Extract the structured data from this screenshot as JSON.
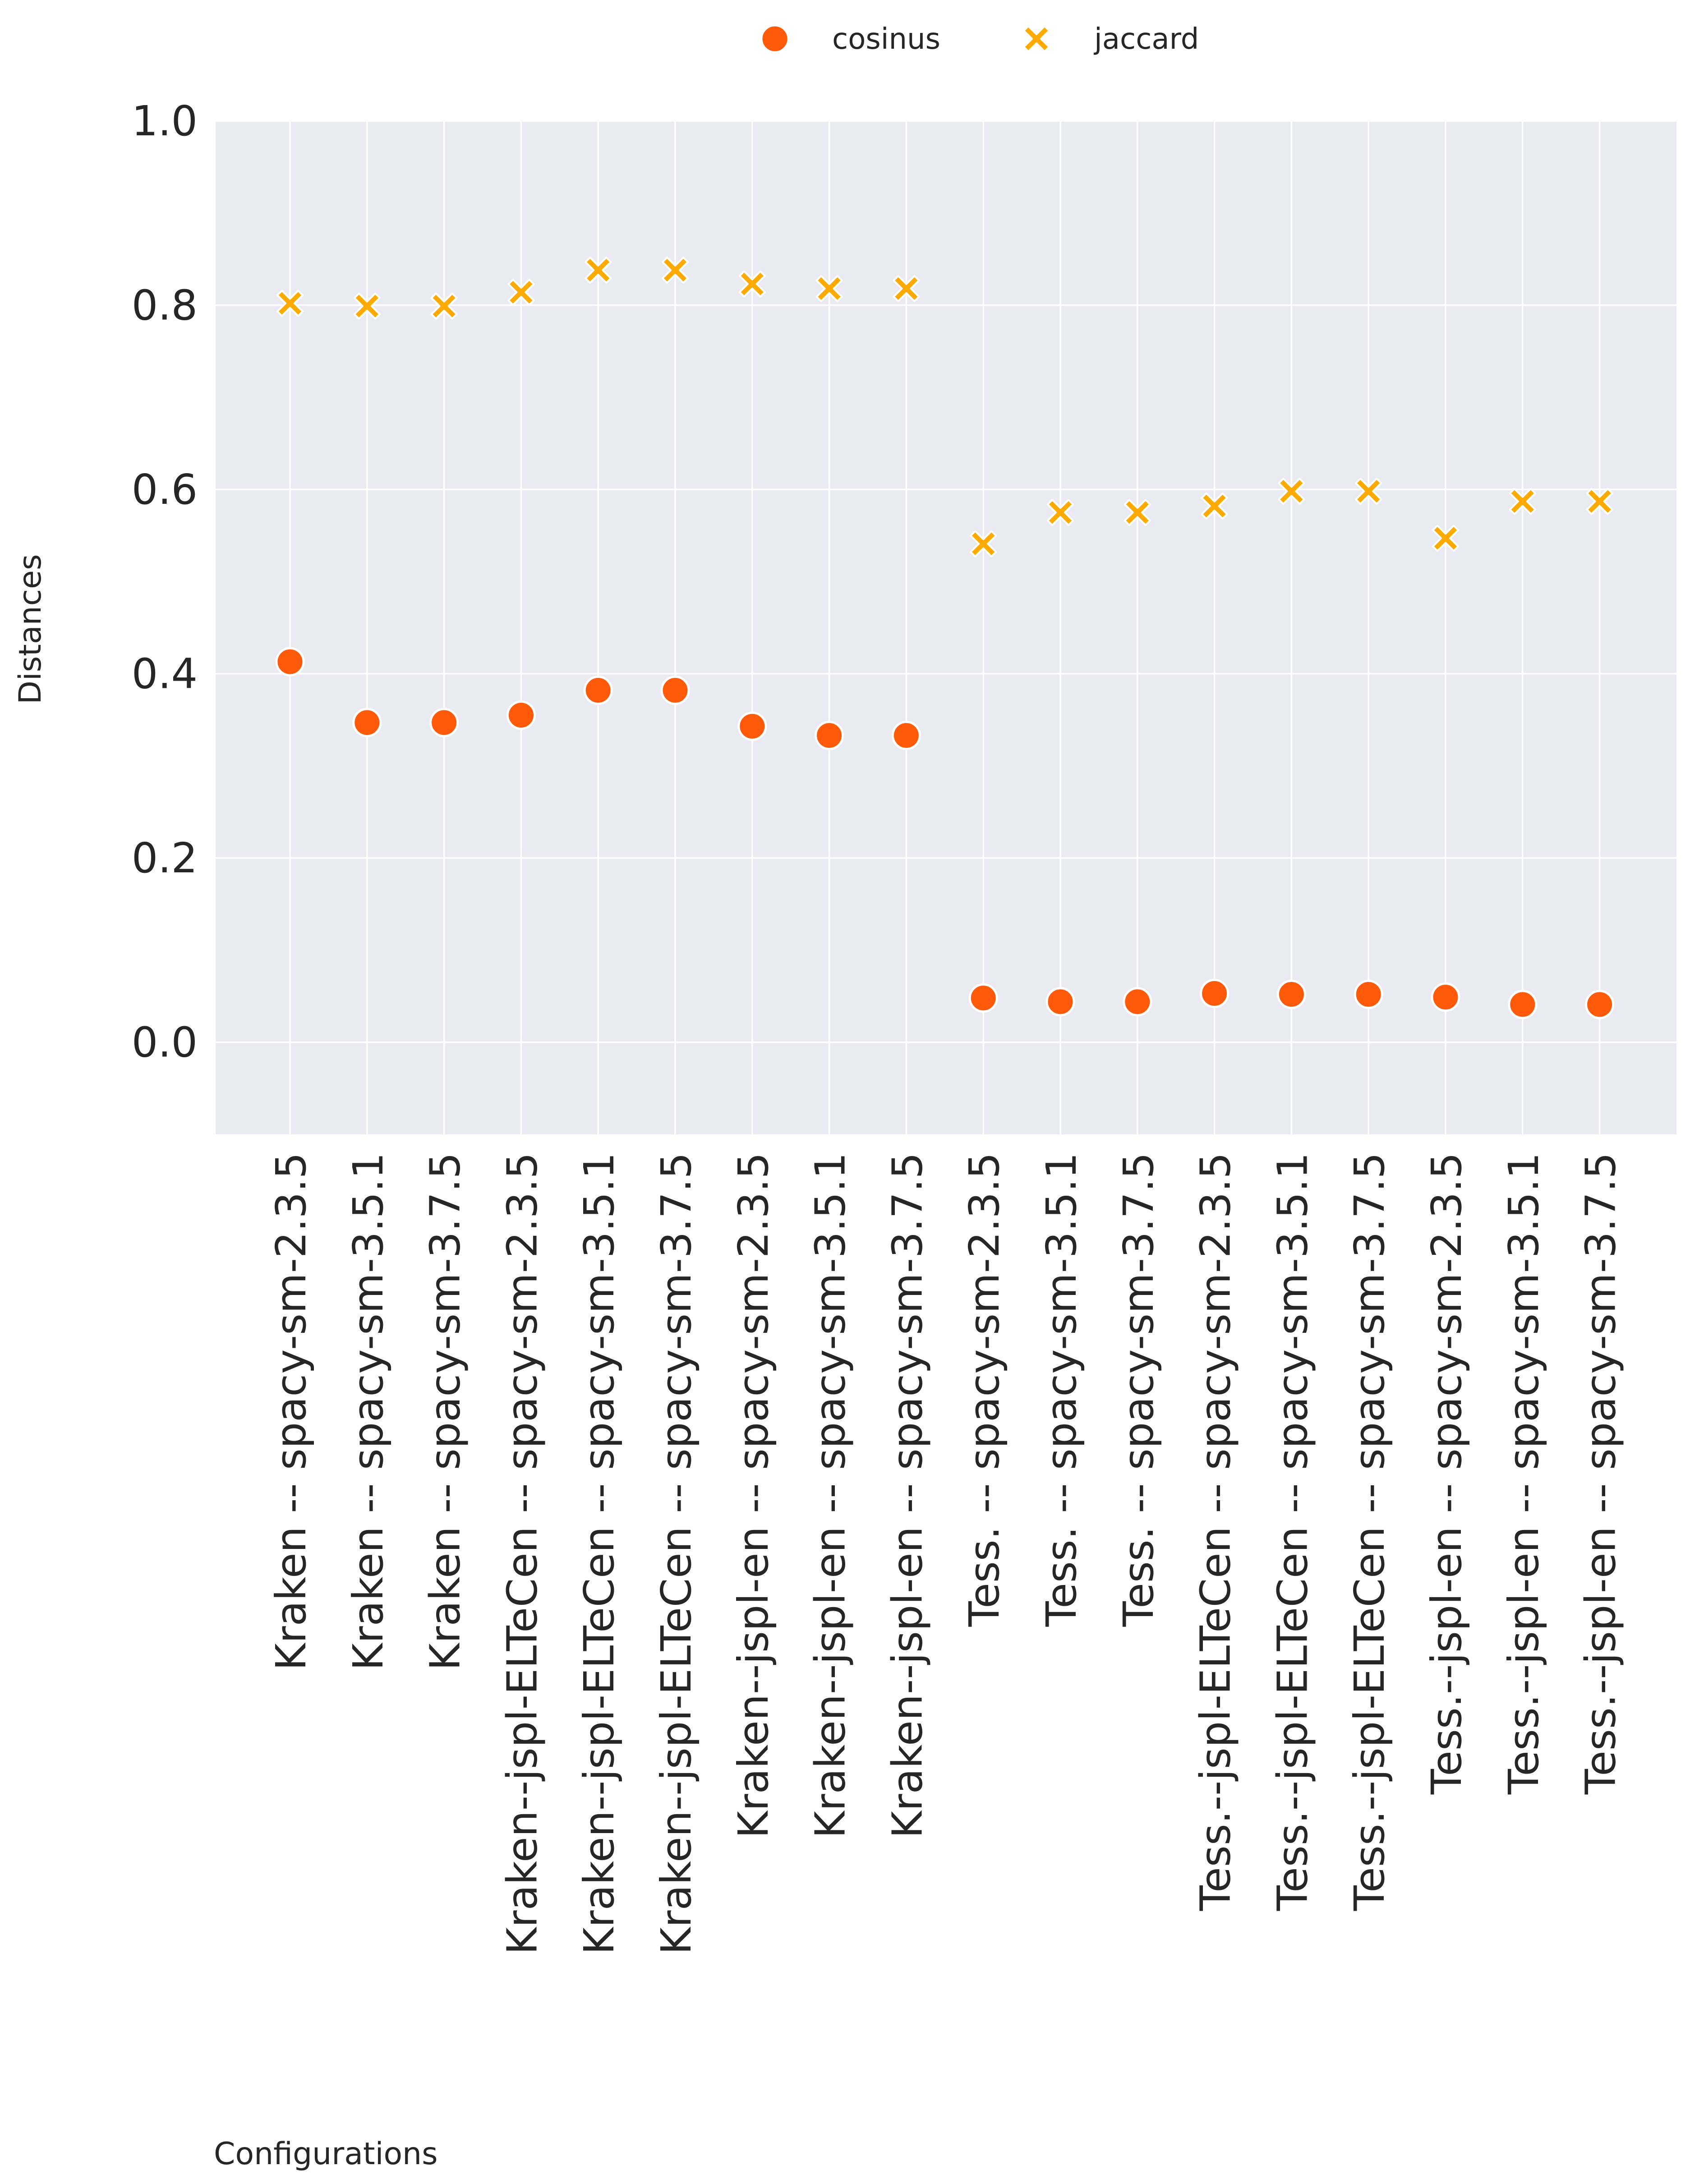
{
  "chart_data": {
    "type": "scatter",
    "title": "",
    "xlabel": "Configurations",
    "ylabel": "Distances",
    "ylim": [
      -0.1,
      1.0
    ],
    "y_ticks": [
      "0.0",
      "0.2",
      "0.4",
      "0.6",
      "0.8",
      "1.0"
    ],
    "grid": true,
    "legend_position": "top-center",
    "categories": [
      "Kraken -- spacy-sm-2.3.5",
      "Kraken -- spacy-sm-3.5.1",
      "Kraken -- spacy-sm-3.7.5",
      "Kraken--jspl-ELTeCen -- spacy-sm-2.3.5",
      "Kraken--jspl-ELTeCen -- spacy-sm-3.5.1",
      "Kraken--jspl-ELTeCen -- spacy-sm-3.7.5",
      "Kraken--jspl-en -- spacy-sm-2.3.5",
      "Kraken--jspl-en -- spacy-sm-3.5.1",
      "Kraken--jspl-en -- spacy-sm-3.7.5",
      "Tess. -- spacy-sm-2.3.5",
      "Tess. -- spacy-sm-3.5.1",
      "Tess. -- spacy-sm-3.7.5",
      "Tess.--jspl-ELTeCen -- spacy-sm-2.3.5",
      "Tess.--jspl-ELTeCen -- spacy-sm-3.5.1",
      "Tess.--jspl-ELTeCen -- spacy-sm-3.7.5",
      "Tess.--jspl-en -- spacy-sm-2.3.5",
      "Tess.--jspl-en -- spacy-sm-3.5.1",
      "Tess.--jspl-en -- spacy-sm-3.7.5"
    ],
    "series": [
      {
        "name": "cosinus",
        "marker": "circle",
        "color": "#ff5a0a",
        "values": [
          0.413,
          0.347,
          0.347,
          0.355,
          0.382,
          0.382,
          0.343,
          0.333,
          0.333,
          0.048,
          0.044,
          0.044,
          0.053,
          0.052,
          0.052,
          0.049,
          0.041,
          0.041
        ]
      },
      {
        "name": "jaccard",
        "marker": "x",
        "color": "#ffaa00",
        "values": [
          0.802,
          0.799,
          0.799,
          0.814,
          0.838,
          0.838,
          0.823,
          0.818,
          0.818,
          0.541,
          0.575,
          0.575,
          0.582,
          0.598,
          0.598,
          0.547,
          0.587,
          0.587
        ]
      }
    ]
  },
  "colors": {
    "plot_background": "#eaeaf2",
    "grid": "#ffffff"
  }
}
